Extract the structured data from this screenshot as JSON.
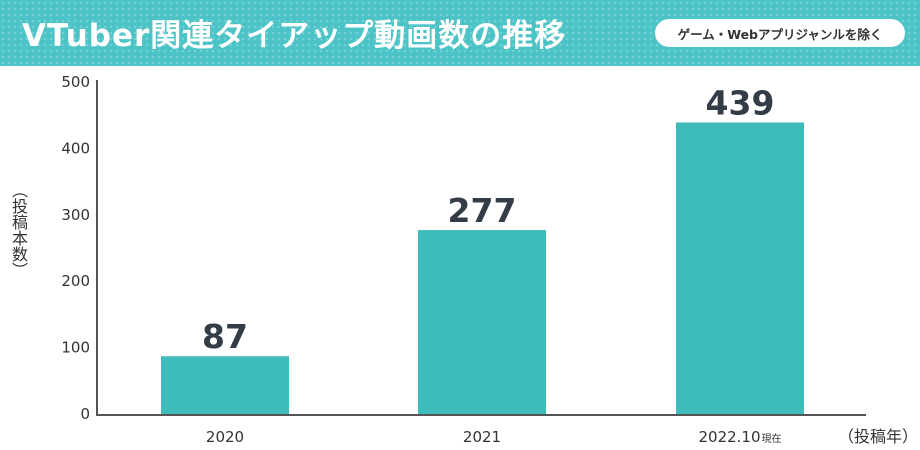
{
  "banner": {
    "title": "VTuber関連タイアップ動画数の推移",
    "note": "ゲーム・Webアプリジャンルを除く"
  },
  "colors": {
    "banner": "#4cc3c6",
    "bar": "#3dbcbb",
    "axis": "#555555",
    "value_text": "#333c47"
  },
  "chart_data": {
    "type": "bar",
    "categories": [
      "2020",
      "2021",
      "2022.10現在"
    ],
    "category_main": [
      "2020",
      "2021",
      "2022.10"
    ],
    "category_suffix": [
      "",
      "",
      "現在"
    ],
    "values": [
      87,
      277,
      439
    ],
    "value_labels": [
      "87",
      "277",
      "439"
    ],
    "ylim": [
      0,
      500
    ],
    "yticks": [
      0,
      100,
      200,
      300,
      400,
      500
    ],
    "ylabel": "（投稿本数）",
    "xlabel": "（投稿年）",
    "grid": false,
    "legend": "none"
  }
}
